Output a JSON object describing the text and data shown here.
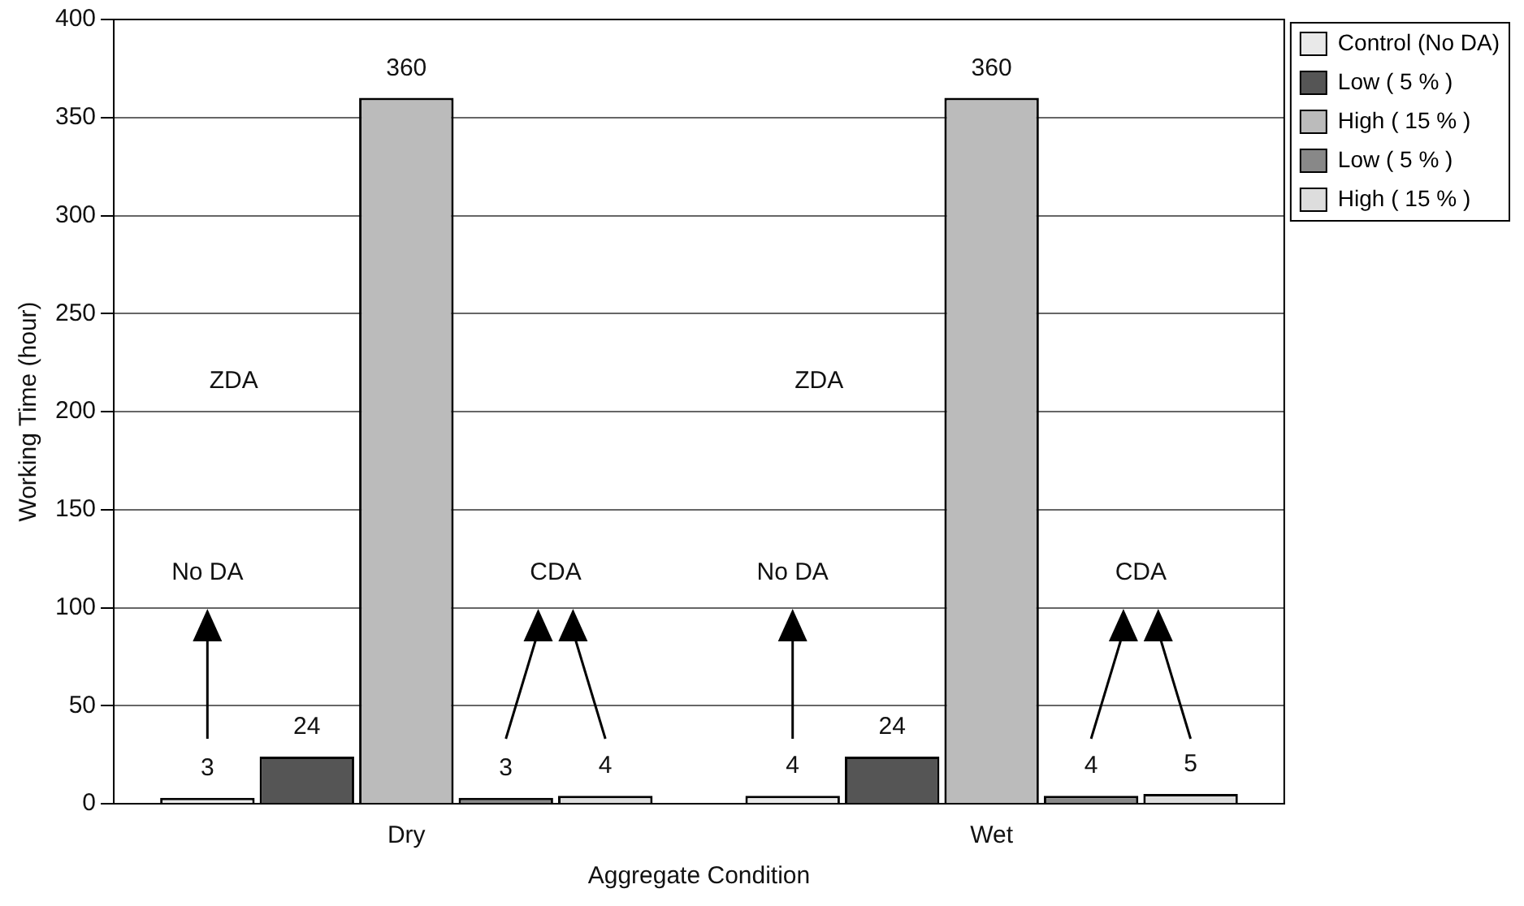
{
  "chart_data": {
    "type": "bar",
    "xlabel": "Aggregate Condition",
    "ylabel": "Working Time (hour)",
    "categories": [
      "Dry",
      "Wet"
    ],
    "series": [
      {
        "name": "Control (No DA)",
        "color": "#e9e9e9",
        "values": [
          3,
          4
        ]
      },
      {
        "name": "Low ( 5 % )",
        "color": "#555555",
        "values": [
          24,
          24
        ]
      },
      {
        "name": "High ( 15 % )",
        "color": "#bbbbbb",
        "values": [
          360,
          360
        ]
      },
      {
        "name": "Low ( 5 % )",
        "color": "#888888",
        "values": [
          3,
          4
        ]
      },
      {
        "name": "High ( 15 % )",
        "color": "#dddddd",
        "values": [
          4,
          5
        ]
      }
    ],
    "ylim": [
      0,
      400
    ],
    "yticks": [
      0,
      50,
      100,
      150,
      200,
      250,
      300,
      350,
      400
    ],
    "grid": "y",
    "legend": "right",
    "data_labels": true,
    "annotations": [
      "No DA",
      "ZDA",
      "CDA",
      "No DA",
      "ZDA",
      "CDA"
    ]
  }
}
